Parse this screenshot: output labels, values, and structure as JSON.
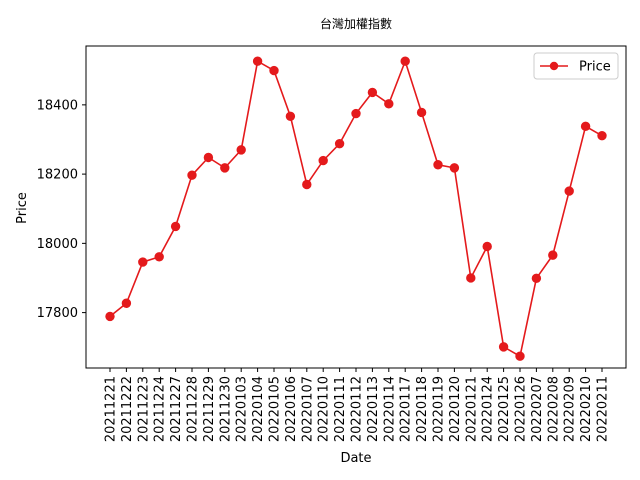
{
  "chart_data": {
    "type": "line",
    "title": "台灣加權指數",
    "xlabel": "Date",
    "ylabel": "Price",
    "ylim": [
      17640,
      18570
    ],
    "yticks": [
      17800,
      18000,
      18200,
      18400
    ],
    "grid": false,
    "legend_position": "top-right",
    "categories": [
      "20211221",
      "20211222",
      "20211223",
      "20211224",
      "20211227",
      "20211228",
      "20211229",
      "20211230",
      "20220103",
      "20220104",
      "20220105",
      "20220106",
      "20220107",
      "20220110",
      "20220111",
      "20220112",
      "20220113",
      "20220114",
      "20220117",
      "20220118",
      "20220119",
      "20220120",
      "20220121",
      "20220124",
      "20220125",
      "20220126",
      "20220207",
      "20220208",
      "20220209",
      "20220210",
      "20220211"
    ],
    "series": [
      {
        "name": "Price",
        "color": "#e41a1c",
        "values": [
          17789,
          17827,
          17946,
          17961,
          18049,
          18197,
          18248,
          18218,
          18270,
          18526,
          18499,
          18367,
          18170,
          18239,
          18288,
          18375,
          18436,
          18403,
          18526,
          18378,
          18227,
          18218,
          17900,
          17991,
          17701,
          17674,
          17899,
          17966,
          18151,
          18338,
          18311
        ]
      }
    ]
  }
}
